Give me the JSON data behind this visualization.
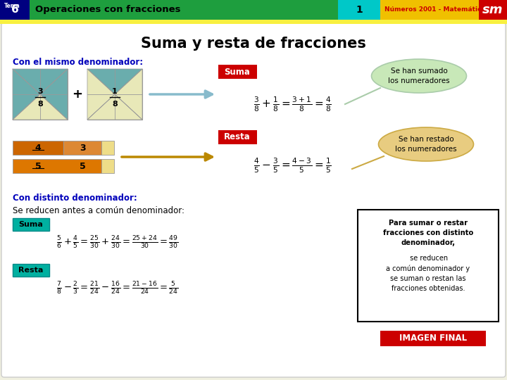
{
  "bg_color": "#f0f0e0",
  "header_green_bg": "#1e9e3e",
  "header_num_bg": "#000080",
  "header_teal_bg": "#00c0a0",
  "header_cyan_bg": "#00c8c8",
  "header_yellow_bg": "#f0c000",
  "header_red_bg": "#cc0000",
  "yellow_bar": "#f8f040",
  "white_area": "#ffffff",
  "main_title": "Suma y resta de fracciones",
  "section1_title": "Con el mismo denominador:",
  "section2_title": "Con distinto denominador:",
  "reduce_text": "Se reducen antes a común denominador:",
  "suma_label": "Suma",
  "resta_label": "Resta",
  "bubble1_text": "Se han sumado\nlos numeradores",
  "bubble2_text": "Se han restado\nlos numeradores",
  "box_bold": "Para sumar o restar\nfracciones con distinto\ndenominador,",
  "box_normal": " se reducen\na común denominador y\nse suman o restan las\nfracciones obtenidas.",
  "imagen_final": "IMAGEN FINAL",
  "teal_sq_color": "#6aadad",
  "cream_color": "#e8e8b8",
  "bar1_dark": "#cc6600",
  "bar1_mid": "#dd8833",
  "bar1_light": "#eedd88",
  "bar2_dark": "#dd7700",
  "bar2_mid": "#ddaa66",
  "bar2_light": "#eedd88",
  "arrow1_color": "#88bbcc",
  "arrow2_color": "#bb8800"
}
